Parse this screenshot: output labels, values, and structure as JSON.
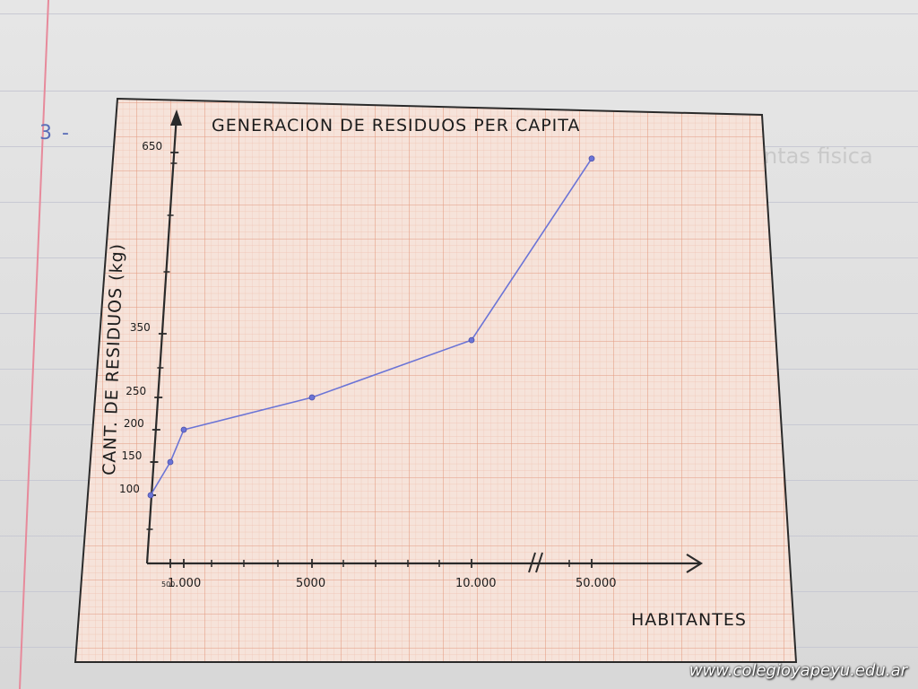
{
  "notebook": {
    "exercise_number": "3 -",
    "ghost_text": "ntas fisica"
  },
  "chart_data": {
    "type": "line",
    "title": "GENERACION DE RESIDUOS PER CAPITA",
    "xlabel": "HABITANTES",
    "ylabel": "CANT. DE RESIDUOS (kg)",
    "x_tick_labels": [
      {
        "x": 500,
        "label": "500"
      },
      {
        "x": 1000,
        "label": "1.000"
      },
      {
        "x": 5000,
        "label": "5000"
      },
      {
        "x": 10000,
        "label": "10.000"
      },
      {
        "x": 50000,
        "label": "50.000"
      }
    ],
    "x_axis_break": true,
    "y_tick_labels": [
      {
        "y": 100,
        "label": "100"
      },
      {
        "y": 150,
        "label": "150"
      },
      {
        "y": 200,
        "label": "200"
      },
      {
        "y": 250,
        "label": "250"
      },
      {
        "y": 350,
        "label": "350"
      },
      {
        "y": 650,
        "label": "650"
      }
    ],
    "series": [
      {
        "color": "#6b74d6",
        "points": [
          {
            "x": 0,
            "y": 100
          },
          {
            "x": 500,
            "y": 150
          },
          {
            "x": 1000,
            "y": 200
          },
          {
            "x": 5000,
            "y": 250
          },
          {
            "x": 10000,
            "y": 340
          },
          {
            "x": 50000,
            "y": 640
          }
        ]
      }
    ],
    "grid": true,
    "grid_color": "#e9a58e",
    "paper_color": "#f6e3da"
  },
  "watermark": "www.colegioyapeyu.edu.ar"
}
